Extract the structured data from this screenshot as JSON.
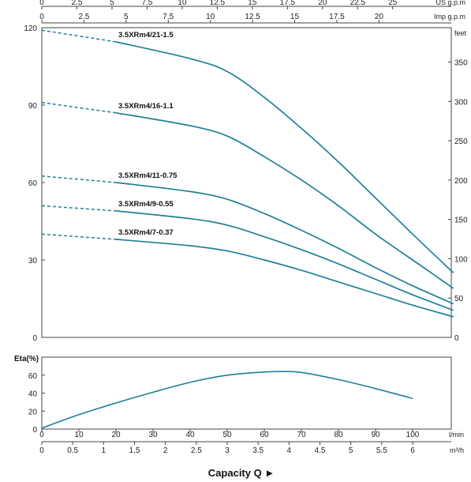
{
  "colors": {
    "curve": "#1f7f99",
    "frame": "#444444",
    "grid": "#dddddd"
  },
  "chart_data": [
    {
      "type": "line",
      "title": "",
      "ylabel_left": "",
      "ylabel_right": "feet",
      "top_axis_1": {
        "unit": "US g.p.m",
        "ticks": [
          "0",
          "2.5",
          "5",
          "7.5",
          "10",
          "12.5",
          "15",
          "17.5",
          "20",
          "22.5",
          "25"
        ]
      },
      "top_axis_2": {
        "unit": "Imp g.p.m",
        "ticks": [
          "0",
          "2.5",
          "5",
          "7.5",
          "10",
          "12.5",
          "15",
          "17.5",
          "20"
        ]
      },
      "xlim": [
        0,
        111
      ],
      "ylim": [
        0,
        120
      ],
      "yticks_left": [
        "0",
        "30",
        "60",
        "90",
        "120"
      ],
      "yticks_right": [
        "0",
        "50",
        "100",
        "150",
        "200",
        "250",
        "300",
        "350"
      ],
      "series": [
        {
          "name": "3.5XRm4/21-1.5",
          "x": [
            0,
            20,
            40,
            50,
            60,
            70,
            80,
            90,
            100,
            111
          ],
          "y": [
            119,
            114.5,
            108,
            103,
            93,
            81,
            68,
            54,
            40,
            25
          ]
        },
        {
          "name": "3.5XRm4/16-1.1",
          "x": [
            0,
            20,
            40,
            50,
            60,
            70,
            80,
            90,
            100,
            111
          ],
          "y": [
            91,
            87,
            82,
            78,
            70,
            61,
            51,
            40,
            30,
            19
          ]
        },
        {
          "name": "3.5XRm4/11-0.75",
          "x": [
            0,
            20,
            40,
            50,
            60,
            70,
            80,
            90,
            100,
            111
          ],
          "y": [
            62.5,
            60,
            56.5,
            53.5,
            48,
            41.5,
            34.5,
            27,
            20,
            13
          ]
        },
        {
          "name": "3.5XRm4/9-0.55",
          "x": [
            0,
            20,
            40,
            50,
            60,
            70,
            80,
            90,
            100,
            111
          ],
          "y": [
            51,
            49,
            46,
            43.5,
            39,
            34,
            28.5,
            22.5,
            16.5,
            10.5
          ]
        },
        {
          "name": "3.5XRm4/7-0.37",
          "x": [
            0,
            20,
            40,
            50,
            60,
            70,
            80,
            90,
            100,
            111
          ],
          "y": [
            40,
            38,
            35.5,
            33.5,
            30,
            26,
            21.5,
            17,
            12.5,
            8
          ]
        }
      ],
      "dashed_until_x": 20
    },
    {
      "type": "line",
      "ylabel": "Eta(%)",
      "xlim": [
        0,
        111
      ],
      "ylim": [
        0,
        80
      ],
      "yticks": [
        "0",
        "20",
        "40",
        "60"
      ],
      "x_axis_1": {
        "unit": "l/min",
        "ticks": [
          "0",
          "10",
          "20",
          "30",
          "40",
          "50",
          "60",
          "70",
          "80",
          "90",
          "100"
        ]
      },
      "x_axis_2": {
        "unit": "m³/h",
        "ticks": [
          "0",
          "0.5",
          "1",
          "1.5",
          "2",
          "2.5",
          "3",
          "3.5",
          "4",
          "4.5",
          "5",
          "5.5",
          "6"
        ]
      },
      "xlabel": "Capacity Q ►",
      "series": [
        {
          "x": [
            0,
            10,
            20,
            30,
            40,
            50,
            60,
            65,
            70,
            80,
            90,
            100
          ],
          "y": [
            1,
            16,
            29,
            41,
            52,
            60,
            63.5,
            64,
            63,
            55,
            45,
            34
          ]
        }
      ]
    }
  ]
}
